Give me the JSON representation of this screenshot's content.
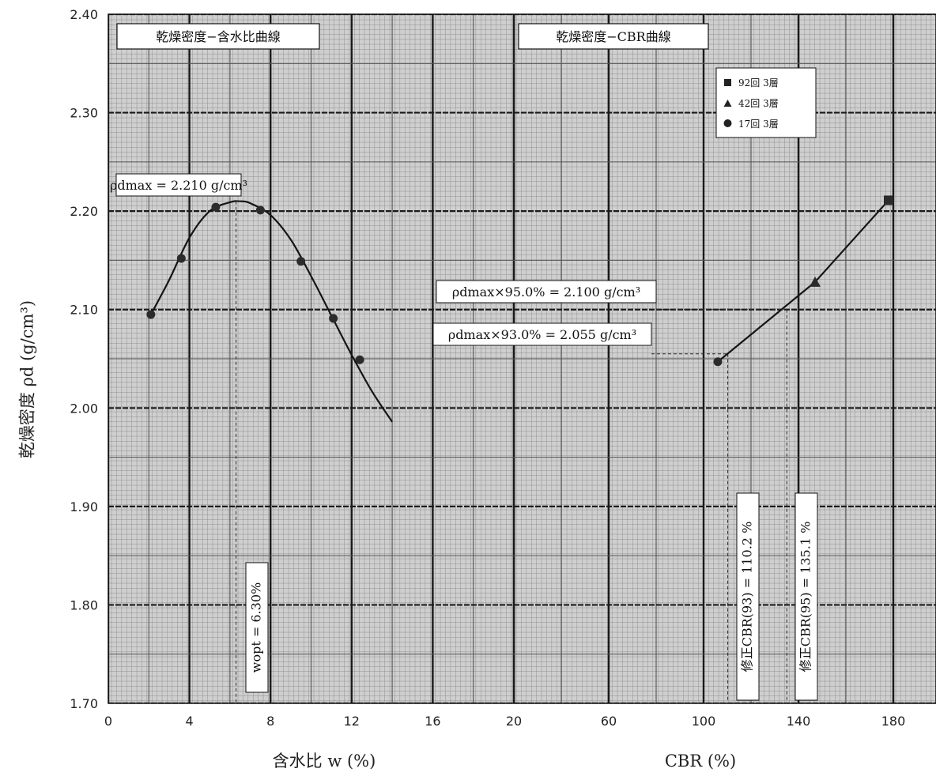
{
  "chart_data": [
    {
      "type": "line",
      "title": "乾燥密度−含水比曲線",
      "xlabel": "含水比 w (%)",
      "ylabel": "乾燥密度 ρd (g/cm³)",
      "xlim": [
        0,
        20
      ],
      "ylim": [
        1.7,
        2.4
      ],
      "xticks": [
        "0",
        "4",
        "8",
        "12",
        "16",
        "20"
      ],
      "yticks": [
        "1.70",
        "1.80",
        "1.90",
        "2.00",
        "2.10",
        "2.20",
        "2.30",
        "2.40"
      ],
      "grid": true,
      "series": [
        {
          "x": [
            2.1,
            3.6,
            5.3,
            7.5,
            9.5,
            11.1,
            12.4
          ],
          "y": [
            2.095,
            2.152,
            2.204,
            2.201,
            2.149,
            2.091,
            2.049
          ]
        }
      ],
      "fit_curve": {
        "x": [
          2.1,
          3.0,
          4.0,
          5.0,
          6.0,
          6.5,
          7.0,
          8.0,
          9.0,
          10.0,
          11.0,
          12.0,
          13.0,
          14.0
        ],
        "y": [
          2.095,
          2.13,
          2.173,
          2.2,
          2.209,
          2.21,
          2.208,
          2.196,
          2.171,
          2.134,
          2.094,
          2.054,
          2.017,
          1.986
        ]
      },
      "annotations": {
        "rho_dmax": "ρdmax = 2.210 g/cm³",
        "w_opt": "wopt = 6.30%",
        "w_opt_value": 6.3
      }
    },
    {
      "type": "line",
      "title": "乾燥密度−CBR曲線",
      "xlabel": "CBR (%)",
      "ylabel": "乾燥密度 ρd (g/cm³)",
      "xlim": [
        20,
        180
      ],
      "ylim": [
        1.7,
        2.4
      ],
      "xticks": [
        "20",
        "60",
        "100",
        "140",
        "180"
      ],
      "grid": true,
      "legend_position": "top-right",
      "series": [
        {
          "name": "92回 3層",
          "marker": "square",
          "x": [
            178
          ],
          "y": [
            2.211
          ]
        },
        {
          "name": "42回 3層",
          "marker": "triangle",
          "x": [
            147
          ],
          "y": [
            2.128
          ]
        },
        {
          "name": "17回 3層",
          "marker": "circle",
          "x": [
            106
          ],
          "y": [
            2.047
          ]
        }
      ],
      "annotations": {
        "rho95": "ρdmax×95.0% = 2.100 g/cm³",
        "rho93": "ρdmax×93.0% = 2.055 g/cm³",
        "cbr93": "修正CBR(93) = 110.2 %",
        "cbr95": "修正CBR(95) = 135.1 %",
        "rho95_value": 2.1,
        "rho93_value": 2.055,
        "cbr93_value": 110.2,
        "cbr95_value": 135.1
      }
    }
  ],
  "colors": {
    "plot_bg": "#c9c9c9",
    "minor_grid": "#8a8a8a",
    "major_grid": "#1a1a1a",
    "curve": "#151515",
    "marker": "#2b2b2b"
  }
}
